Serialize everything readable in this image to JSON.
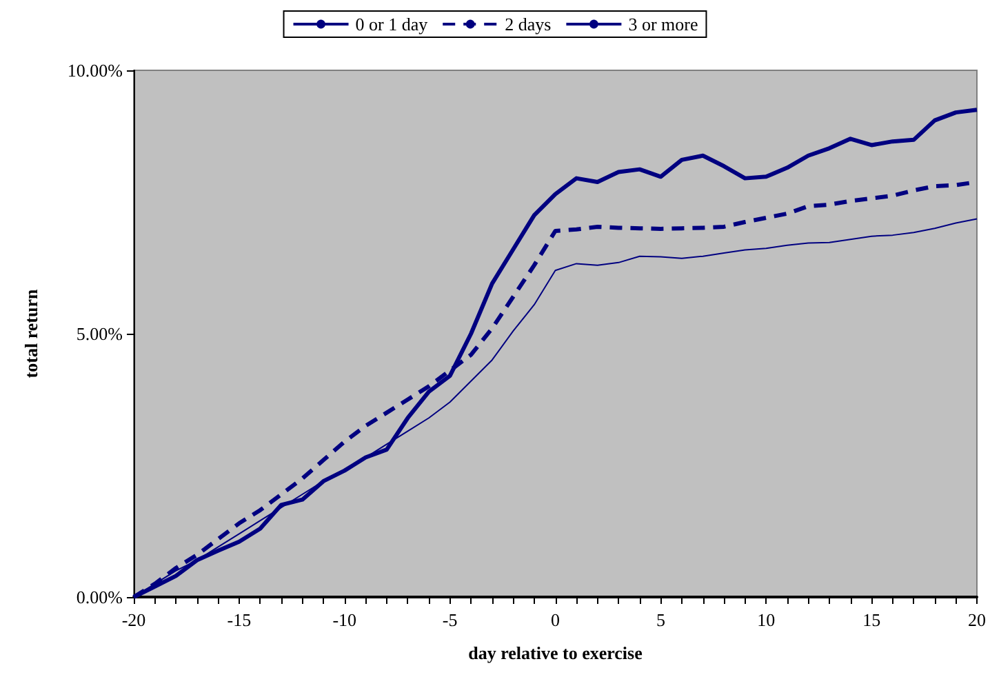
{
  "chart_data": {
    "type": "line",
    "xlabel": "day relative to exercise",
    "ylabel": "total return",
    "x": [
      -20,
      -19,
      -18,
      -17,
      -16,
      -15,
      -14,
      -13,
      -12,
      -11,
      -10,
      -9,
      -8,
      -7,
      -6,
      -5,
      -4,
      -3,
      -2,
      -1,
      0,
      1,
      2,
      3,
      4,
      5,
      6,
      7,
      8,
      9,
      10,
      11,
      12,
      13,
      14,
      15,
      16,
      17,
      18,
      19,
      20
    ],
    "series": [
      {
        "name": "0 or 1 day",
        "color": "#000080",
        "line_style": "solid",
        "values": [
          0,
          0.25,
          0.5,
          0.7,
          0.95,
          1.2,
          1.45,
          1.7,
          1.95,
          2.2,
          2.4,
          2.65,
          2.9,
          3.15,
          3.4,
          3.7,
          4.1,
          4.5,
          5.05,
          5.55,
          6.2,
          6.33,
          6.3,
          6.35,
          6.47,
          6.46,
          6.43,
          6.47,
          6.53,
          6.59,
          6.62,
          6.68,
          6.72,
          6.73,
          6.79,
          6.85,
          6.87,
          6.92,
          7.0,
          7.1,
          7.18
        ]
      },
      {
        "name": "2 days",
        "color": "#000080",
        "line_style": "dashed",
        "values": [
          0,
          0.25,
          0.55,
          0.8,
          1.1,
          1.4,
          1.65,
          1.95,
          2.25,
          2.6,
          2.95,
          3.25,
          3.5,
          3.75,
          4.0,
          4.3,
          4.6,
          5.1,
          5.7,
          6.3,
          6.95,
          6.98,
          7.03,
          7.01,
          7.0,
          6.99,
          7.0,
          7.01,
          7.03,
          7.12,
          7.2,
          7.28,
          7.42,
          7.45,
          7.52,
          7.57,
          7.62,
          7.72,
          7.8,
          7.82,
          7.88
        ]
      },
      {
        "name": "3 or more",
        "color": "#000080",
        "line_style": "solid",
        "values": [
          0,
          0.2,
          0.4,
          0.7,
          0.88,
          1.05,
          1.3,
          1.75,
          1.85,
          2.2,
          2.4,
          2.65,
          2.8,
          3.4,
          3.9,
          4.2,
          5.0,
          5.95,
          6.6,
          7.25,
          7.65,
          7.95,
          7.88,
          8.07,
          8.12,
          7.98,
          8.3,
          8.38,
          8.18,
          7.95,
          7.98,
          8.15,
          8.38,
          8.52,
          8.7,
          8.58,
          8.65,
          8.68,
          9.05,
          9.2,
          9.25
        ]
      }
    ],
    "xlim": [
      -20,
      20
    ],
    "xticks": [
      -20,
      {
        "value": -19,
        "label": null
      },
      {
        "value": -18,
        "label": null
      },
      {
        "value": -17,
        "label": null
      },
      {
        "value": -16,
        "label": null
      },
      -15,
      {
        "value": -14,
        "label": null
      },
      {
        "value": -13,
        "label": null
      },
      {
        "value": -12,
        "label": null
      },
      {
        "value": -11,
        "label": null
      },
      -10,
      {
        "value": -9,
        "label": null
      },
      {
        "value": -8,
        "label": null
      },
      {
        "value": -7,
        "label": null
      },
      {
        "value": -6,
        "label": null
      },
      -5,
      {
        "value": -4,
        "label": null
      },
      {
        "value": -3,
        "label": null
      },
      {
        "value": -2,
        "label": null
      },
      {
        "value": -1,
        "label": null
      },
      0,
      {
        "value": 1,
        "label": null
      },
      {
        "value": 2,
        "label": null
      },
      {
        "value": 3,
        "label": null
      },
      {
        "value": 4,
        "label": null
      },
      5,
      {
        "value": 6,
        "label": null
      },
      {
        "value": 7,
        "label": null
      },
      {
        "value": 8,
        "label": null
      },
      {
        "value": 9,
        "label": null
      },
      10,
      {
        "value": 11,
        "label": null
      },
      {
        "value": 12,
        "label": null
      },
      {
        "value": 13,
        "label": null
      },
      {
        "value": 14,
        "label": null
      },
      15,
      {
        "value": 16,
        "label": null
      },
      {
        "value": 17,
        "label": null
      },
      {
        "value": 18,
        "label": null
      },
      {
        "value": 19,
        "label": null
      },
      20
    ],
    "ylim": [
      0,
      10
    ],
    "yticks": [
      {
        "value": 0,
        "label": "0.00%"
      },
      {
        "value": 5,
        "label": "5.00%"
      },
      {
        "value": 10,
        "label": "10.00%"
      }
    ],
    "grid": false,
    "legend": "top",
    "marker": "none"
  }
}
